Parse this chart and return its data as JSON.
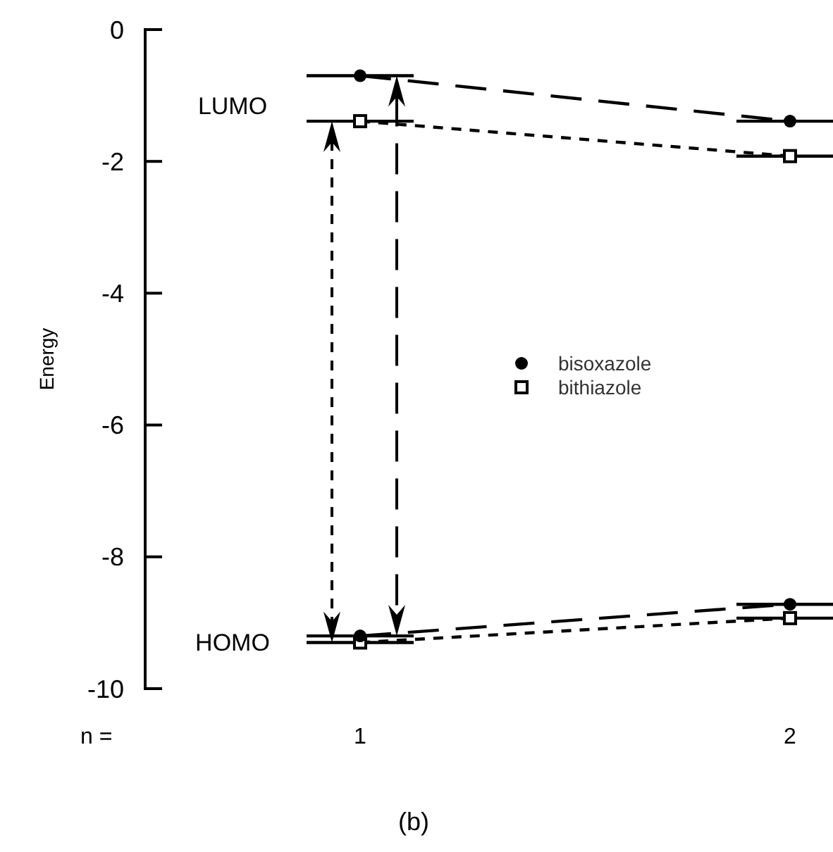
{
  "chart_data": {
    "type": "line",
    "ylabel": "Energy",
    "xlabel": "n =",
    "x": [
      1,
      2
    ],
    "xlim": [
      0.5,
      2.1
    ],
    "xticks": [
      1,
      2
    ],
    "ylim": [
      -10,
      0
    ],
    "yticks": [
      0,
      -2,
      -4,
      -6,
      -8,
      -10
    ],
    "series": [
      {
        "name": "bisoxazole",
        "color": "#000000",
        "values": [
          -0.7,
          -1.39
        ],
        "marker": "circle",
        "line_style": "dashed"
      },
      {
        "color": "#000000",
        "values": [
          -9.2,
          -8.72
        ],
        "marker": "circle",
        "line_style": "dashed"
      },
      {
        "name": "bithiazole",
        "color": "#000000",
        "values": [
          -1.39,
          -1.92
        ],
        "marker": "square",
        "line_style": "dotted"
      },
      {
        "color": "#000000",
        "values": [
          -9.3,
          -8.93
        ],
        "marker": "square",
        "line_style": "dotted"
      }
    ],
    "annotations": [
      "LUMO",
      "HOMO",
      "(b)"
    ],
    "legend": "right",
    "grid": false
  }
}
